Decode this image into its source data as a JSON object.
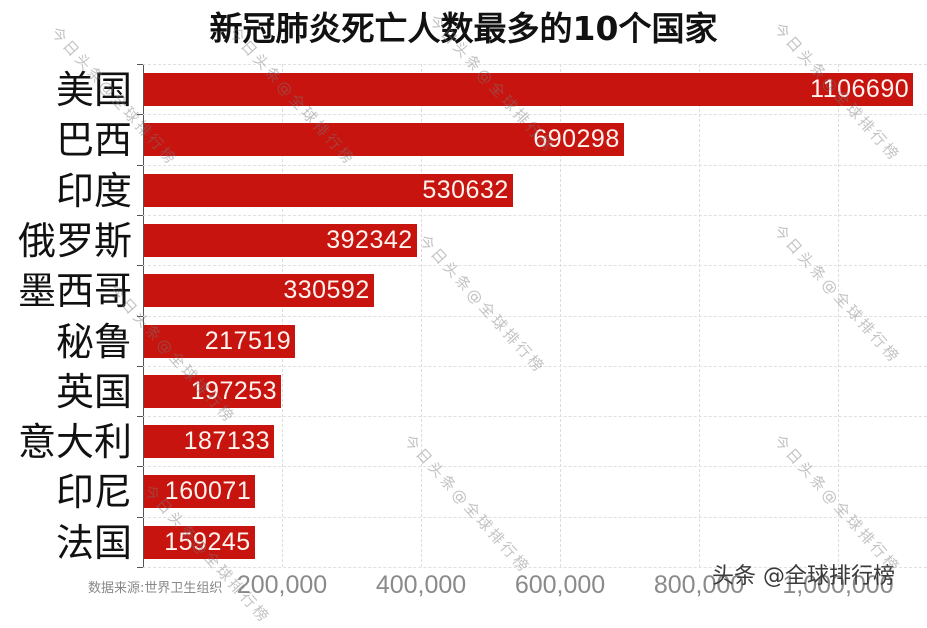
{
  "title": "新冠肺炎死亡人数最多的10个国家",
  "source": "数据来源:世界卫生组织",
  "credit": "头条 @全球排行榜",
  "watermark": "今日头条@全球排行榜",
  "colors": {
    "bar": "#c8140f",
    "bar_label": "#fff3ef",
    "axis_label": "#8a8a8a"
  },
  "chart_data": {
    "type": "bar",
    "orientation": "horizontal",
    "title": "新冠肺炎死亡人数最多的10个国家",
    "xlabel": "",
    "ylabel": "",
    "categories": [
      "美国",
      "巴西",
      "印度",
      "俄罗斯",
      "墨西哥",
      "秘鲁",
      "英国",
      "意大利",
      "印尼",
      "法国"
    ],
    "values": [
      1106690,
      690298,
      530632,
      392342,
      330592,
      217519,
      197253,
      187133,
      160071,
      159245
    ],
    "xlim": [
      0,
      1127000
    ],
    "x_ticks": [
      "200,000",
      "400,000",
      "600,000",
      "800,000",
      "1,000,000"
    ],
    "x_tick_values": [
      200000,
      400000,
      600000,
      800000,
      1000000
    ],
    "grid": true,
    "data_labels": true,
    "legend": null,
    "annotation": "数据来源:世界卫生组织"
  }
}
